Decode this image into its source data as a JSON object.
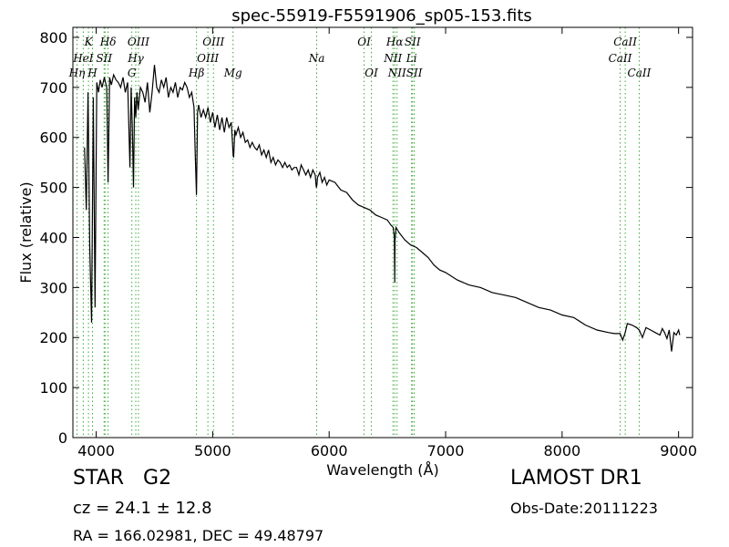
{
  "chart_data": {
    "type": "line",
    "title": "spec-55919-F5591906_sp05-153.fits",
    "xlabel": "Wavelength (Å)",
    "ylabel": "Flux (relative)",
    "xlim": [
      3800,
      9120
    ],
    "ylim": [
      0,
      820
    ],
    "xticks": [
      4000,
      5000,
      6000,
      7000,
      8000,
      9000
    ],
    "yticks": [
      0,
      100,
      200,
      300,
      400,
      500,
      600,
      700,
      800
    ],
    "grid": false,
    "series": [
      {
        "x": [
          3900,
          3915,
          3930,
          3945,
          3960,
          3975,
          3990,
          4005,
          4020,
          4035,
          4050,
          4070,
          4090,
          4102,
          4115,
          4130,
          4150,
          4170,
          4190,
          4210,
          4230,
          4250,
          4270,
          4290,
          4300,
          4310,
          4320,
          4330,
          4340,
          4350,
          4360,
          4380,
          4400,
          4420,
          4440,
          4460,
          4480,
          4500,
          4520,
          4540,
          4560,
          4580,
          4600,
          4620,
          4640,
          4660,
          4680,
          4700,
          4720,
          4740,
          4760,
          4780,
          4800,
          4820,
          4840,
          4850,
          4861,
          4870,
          4880,
          4900,
          4920,
          4940,
          4960,
          4980,
          5000,
          5020,
          5040,
          5060,
          5080,
          5100,
          5120,
          5140,
          5160,
          5170,
          5175,
          5180,
          5190,
          5200,
          5220,
          5240,
          5260,
          5280,
          5300,
          5320,
          5340,
          5360,
          5380,
          5400,
          5420,
          5440,
          5460,
          5480,
          5500,
          5520,
          5540,
          5560,
          5580,
          5600,
          5620,
          5640,
          5660,
          5680,
          5700,
          5720,
          5740,
          5760,
          5780,
          5800,
          5820,
          5840,
          5860,
          5880,
          5890,
          5895,
          5900,
          5920,
          5940,
          5960,
          5980,
          6000,
          6050,
          6100,
          6150,
          6200,
          6250,
          6300,
          6350,
          6400,
          6450,
          6500,
          6530,
          6550,
          6560,
          6563,
          6566,
          6575,
          6600,
          6650,
          6700,
          6750,
          6800,
          6850,
          6900,
          6950,
          7000,
          7100,
          7200,
          7300,
          7400,
          7500,
          7600,
          7700,
          7800,
          7900,
          8000,
          8100,
          8200,
          8300,
          8400,
          8450,
          8498,
          8520,
          8542,
          8560,
          8600,
          8640,
          8662,
          8690,
          8720,
          8760,
          8800,
          8840,
          8860,
          8880,
          8900,
          8920,
          8940,
          8960,
          8980,
          9000,
          9010
        ],
        "y": [
          580,
          455,
          690,
          380,
          230,
          680,
          260,
          710,
          690,
          715,
          700,
          720,
          700,
          510,
          720,
          705,
          725,
          715,
          710,
          700,
          720,
          690,
          710,
          540,
          700,
          620,
          500,
          680,
          640,
          690,
          655,
          700,
          690,
          670,
          710,
          650,
          690,
          745,
          700,
          690,
          715,
          700,
          720,
          680,
          700,
          690,
          710,
          680,
          700,
          695,
          710,
          700,
          680,
          690,
          660,
          570,
          485,
          650,
          665,
          640,
          655,
          640,
          660,
          630,
          650,
          620,
          645,
          615,
          640,
          610,
          640,
          620,
          630,
          590,
          565,
          560,
          615,
          605,
          620,
          600,
          610,
          590,
          595,
          580,
          590,
          580,
          575,
          585,
          565,
          575,
          560,
          575,
          550,
          560,
          545,
          555,
          550,
          540,
          550,
          540,
          545,
          535,
          540,
          540,
          525,
          545,
          535,
          525,
          535,
          520,
          535,
          525,
          500,
          505,
          520,
          530,
          510,
          520,
          505,
          515,
          510,
          495,
          490,
          475,
          465,
          460,
          455,
          445,
          440,
          435,
          425,
          420,
          400,
          310,
          395,
          420,
          410,
          395,
          385,
          380,
          370,
          360,
          345,
          335,
          330,
          315,
          305,
          300,
          290,
          285,
          280,
          270,
          260,
          255,
          245,
          240,
          225,
          215,
          210,
          208,
          208,
          195,
          210,
          228,
          225,
          220,
          215,
          200,
          220,
          215,
          210,
          205,
          218,
          210,
          198,
          215,
          172,
          210,
          205,
          215,
          205
        ]
      }
    ],
    "annotations": [
      {
        "text": "Hη",
        "x": 3835,
        "row": 3
      },
      {
        "text": "HeI",
        "x": 3889,
        "row": 2
      },
      {
        "text": "K",
        "x": 3934,
        "row": 1
      },
      {
        "text": "H",
        "x": 3968,
        "row": 3
      },
      {
        "text": "SII",
        "x": 4068,
        "row": 2
      },
      {
        "text": "Hδ",
        "x": 4102,
        "row": 1
      },
      {
        "text": "Hγ",
        "x": 4340,
        "row": 2
      },
      {
        "text": "G",
        "x": 4306,
        "row": 3
      },
      {
        "text": "OIII",
        "x": 4363,
        "row": 1
      },
      {
        "text": "Hβ",
        "x": 4861,
        "row": 3
      },
      {
        "text": "OIII",
        "x": 4959,
        "row": 2
      },
      {
        "text": "OIII",
        "x": 5007,
        "row": 1
      },
      {
        "text": "Mg",
        "x": 5175,
        "row": 3
      },
      {
        "text": "Na",
        "x": 5893,
        "row": 2
      },
      {
        "text": "OI",
        "x": 6300,
        "row": 1
      },
      {
        "text": "OI",
        "x": 6363,
        "row": 3
      },
      {
        "text": "NII",
        "x": 6548,
        "row": 2
      },
      {
        "text": "NII",
        "x": 6583,
        "row": 3
      },
      {
        "text": "Hα",
        "x": 6563,
        "row": 1
      },
      {
        "text": "Li",
        "x": 6708,
        "row": 2
      },
      {
        "text": "SII",
        "x": 6716,
        "row": 1
      },
      {
        "text": "SII",
        "x": 6731,
        "row": 3
      },
      {
        "text": "CaII",
        "x": 8498,
        "row": 2
      },
      {
        "text": "CaII",
        "x": 8542,
        "row": 1
      },
      {
        "text": "CaII",
        "x": 8662,
        "row": 3
      }
    ],
    "marker_lines_x": [
      3835,
      3889,
      3934,
      3968,
      4068,
      4076,
      4102,
      4306,
      4340,
      4363,
      4861,
      4959,
      5007,
      5175,
      5893,
      6300,
      6363,
      6548,
      6563,
      6583,
      6708,
      6716,
      6731,
      8498,
      8542,
      8662
    ],
    "colors": {
      "spectrum": "#000000",
      "marker_lines": "#3aa83a"
    }
  },
  "info": {
    "object_type": "STAR",
    "subclass": "G2",
    "survey": "LAMOST DR1",
    "cz": "cz = 24.1  ± 12.8",
    "obs_date": "Obs-Date:20111223",
    "radec": "RA = 166.02981, DEC = 49.48797"
  }
}
